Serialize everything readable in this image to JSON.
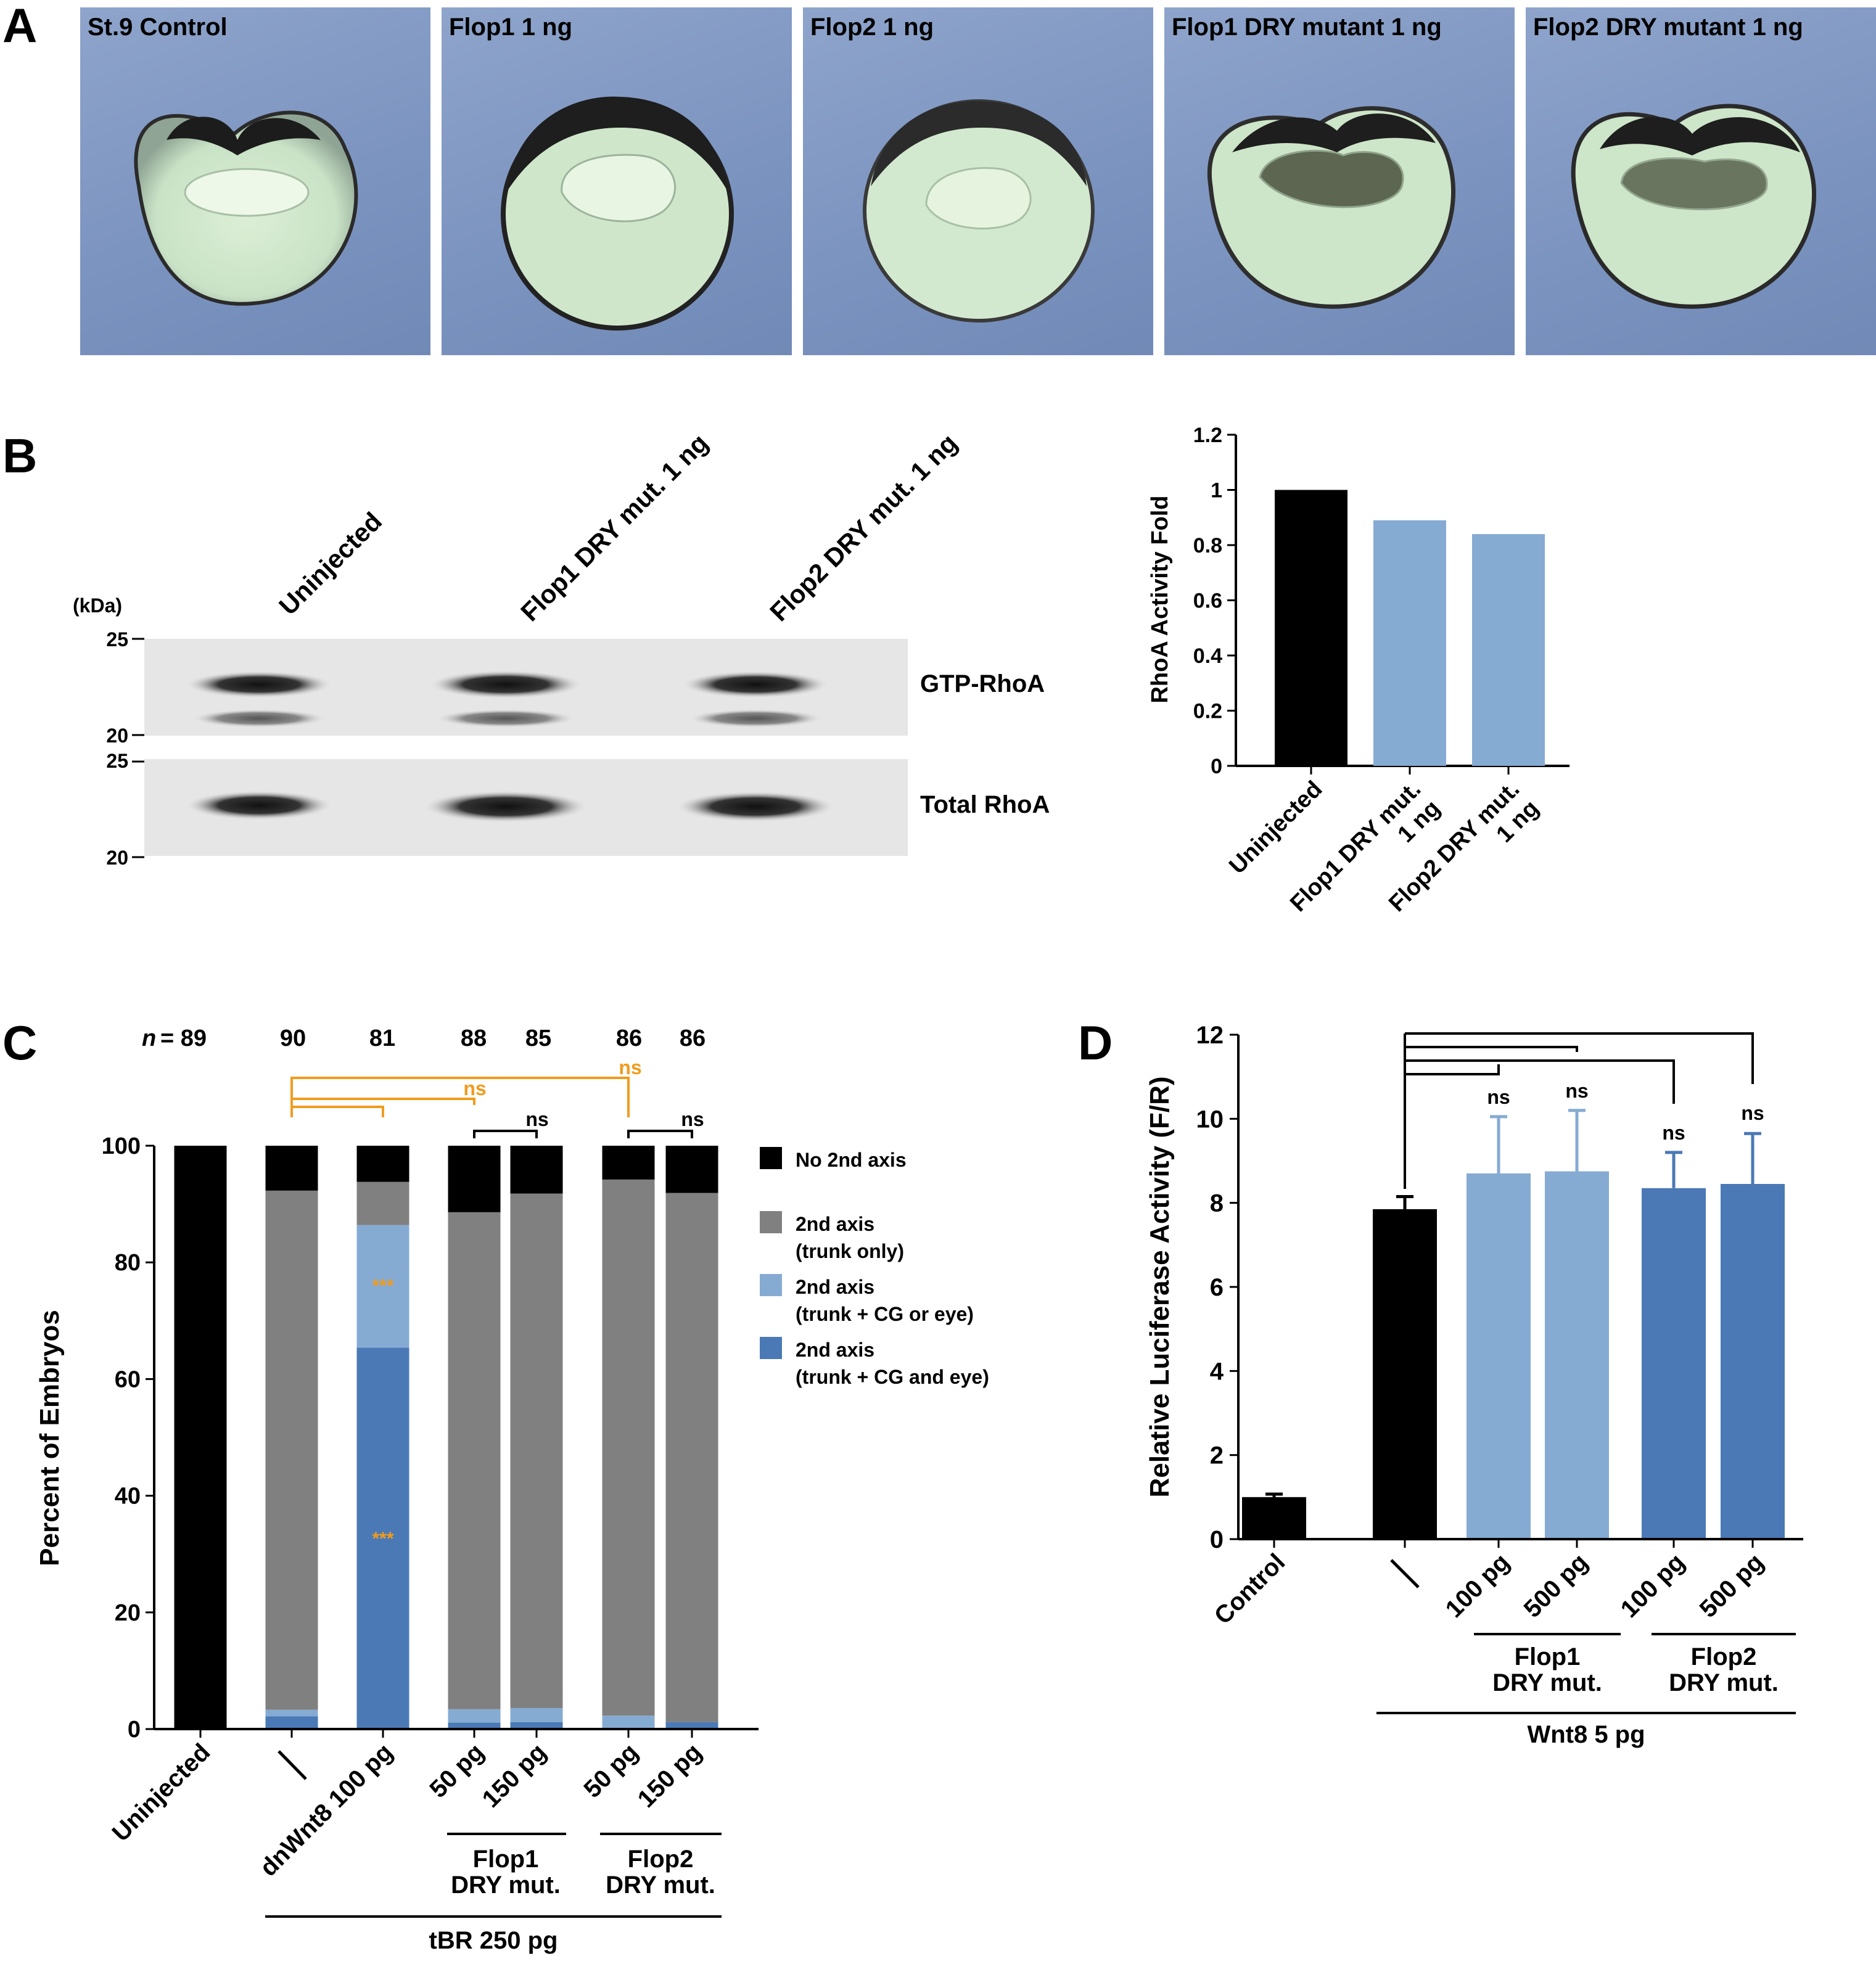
{
  "panels": {
    "a": "A",
    "b": "B",
    "c": "C",
    "d": "D"
  },
  "panel_a": {
    "tiles": [
      {
        "label": "St.9 Control"
      },
      {
        "label": "Flop1 1 ng"
      },
      {
        "label": "Flop2 1 ng"
      },
      {
        "label": "Flop1 DRY mutant 1 ng"
      },
      {
        "label": "Flop2 DRY mutant 1 ng"
      }
    ]
  },
  "panel_b_blot": {
    "lanes": [
      "Uninjected",
      "Flop1 DRY mut. 1 ng",
      "Flop2 DRY mut. 1 ng"
    ],
    "kda_label": "(kDa)",
    "markers": [
      "25",
      "20",
      "25",
      "20"
    ],
    "rows": [
      "GTP-RhoA",
      "Total RhoA"
    ]
  },
  "chart_data": [
    {
      "type": "bar",
      "panel": "B",
      "categories": [
        "Uninjected",
        "Flop1 DRY mut. 1 ng",
        "Flop2 DRY mut. 1 ng"
      ],
      "values": [
        1.0,
        0.89,
        0.84
      ],
      "colors": [
        "#000000",
        "#86abd3",
        "#86abd3"
      ],
      "ylabel": "RhoA Activity Fold",
      "ylim": [
        0,
        1.2
      ],
      "yticks": [
        "0",
        "0.2",
        "0.4",
        "0.6",
        "0.8",
        "1",
        "1.2"
      ]
    },
    {
      "type": "bar",
      "stacked": true,
      "panel": "C",
      "categories": [
        "Uninjected",
        "–",
        "dnWnt8 100 pg",
        "50 pg",
        "150 pg",
        "50 pg",
        "150 pg"
      ],
      "n_prefix": "n",
      "n_values": [
        "= 89",
        "90",
        "81",
        "88",
        "85",
        "86",
        "86"
      ],
      "series": [
        {
          "name": "2nd axis (trunk + CG and eye)",
          "color": "#4a79b6",
          "values": [
            0,
            2.2,
            65.4,
            1.1,
            1.2,
            0.0,
            1.2
          ]
        },
        {
          "name": "2nd axis (trunk + CG or eye)",
          "color": "#86abd3",
          "values": [
            0,
            1.1,
            21.0,
            2.3,
            2.4,
            2.3,
            0.0
          ]
        },
        {
          "name": "2nd axis (trunk only)",
          "color": "#808080",
          "values": [
            0,
            89.0,
            7.4,
            85.2,
            88.2,
            91.9,
            90.7
          ]
        },
        {
          "name": "No 2nd axis",
          "color": "#000000",
          "values": [
            100,
            7.7,
            6.2,
            11.4,
            8.2,
            5.8,
            8.1
          ]
        }
      ],
      "legend": [
        {
          "line1": "No 2nd axis",
          "line2": "",
          "color": "#000000"
        },
        {
          "line1": "2nd axis",
          "line2": "(trunk only)",
          "color": "#808080"
        },
        {
          "line1": "2nd axis",
          "line2": "(trunk + CG or eye)",
          "color": "#86abd3"
        },
        {
          "line1": "2nd axis",
          "line2": "(trunk + CG and eye)",
          "color": "#4a79b6"
        }
      ],
      "ylabel": "Percent of Embryos",
      "ylim": [
        0,
        100
      ],
      "yticks": [
        "0",
        "20",
        "40",
        "60",
        "80",
        "100"
      ],
      "stars": [
        "***",
        "***"
      ],
      "sig_labels": [
        "ns",
        "ns",
        "ns",
        "ns"
      ],
      "group_labels": {
        "flop1_line1": "Flop1",
        "flop1_line2": "DRY mut.",
        "flop2_line1": "Flop2",
        "flop2_line2": "DRY mut.",
        "tbr": "tBR 250 pg"
      }
    },
    {
      "type": "bar",
      "panel": "D",
      "categories": [
        "Control",
        "–",
        "100 pg",
        "500 pg",
        "100 pg",
        "500 pg"
      ],
      "values": [
        1.0,
        7.85,
        8.7,
        8.75,
        8.35,
        8.45
      ],
      "errors": [
        0.07,
        0.3,
        1.35,
        1.45,
        0.85,
        1.2
      ],
      "colors": [
        "#000000",
        "#000000",
        "#86abd3",
        "#86abd3",
        "#4a79b6",
        "#4a79b6"
      ],
      "ylabel": "Relative Luciferase Activity (F/R)",
      "ylim": [
        0,
        12
      ],
      "yticks": [
        "0",
        "2",
        "4",
        "6",
        "8",
        "10",
        "12"
      ],
      "sig_labels": [
        "ns",
        "ns",
        "ns",
        "ns"
      ],
      "group_labels": {
        "flop1_line1": "Flop1",
        "flop1_line2": "DRY mut.",
        "flop2_line1": "Flop2",
        "flop2_line2": "DRY mut.",
        "wnt": "Wnt8 5 pg"
      }
    }
  ]
}
